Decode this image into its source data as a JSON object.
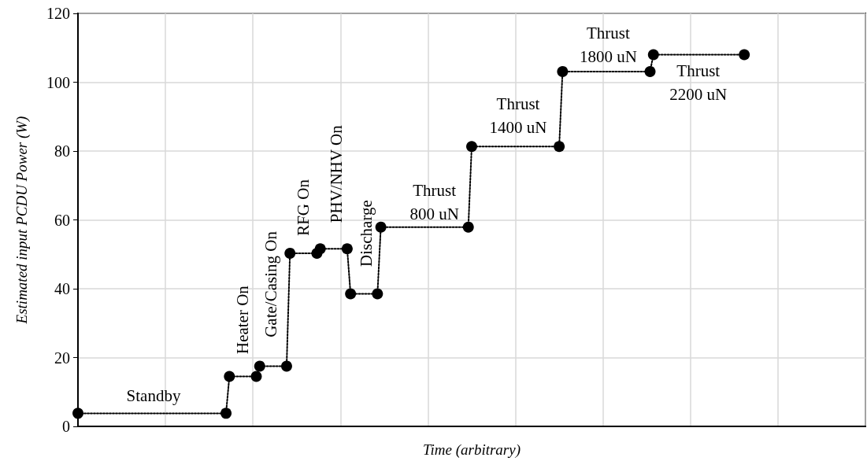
{
  "chart_data": {
    "type": "line",
    "xlabel": "Time (arbitrary)",
    "ylabel": "Estimated input PCDU Power (W)",
    "categories": [
      null,
      null,
      null,
      null,
      null,
      null,
      null,
      null,
      null,
      null,
      null,
      null,
      null,
      null,
      null,
      null,
      null,
      null,
      null,
      null,
      null,
      null,
      null,
      null,
      null,
      null,
      null,
      null,
      null,
      null,
      null,
      null,
      null,
      null,
      null,
      null,
      null,
      null,
      null,
      null,
      null,
      null,
      null,
      null,
      null,
      null,
      null,
      null,
      null,
      null,
      null,
      null,
      null,
      null,
      null,
      null,
      null,
      null,
      null,
      null,
      null,
      null,
      null,
      null,
      null,
      null,
      null,
      null,
      null,
      null,
      null,
      null,
      null,
      null,
      null,
      null,
      null,
      null,
      null,
      null,
      null,
      null,
      null,
      null,
      null,
      null,
      null,
      null,
      null,
      null,
      null,
      null,
      null,
      null,
      null,
      null,
      null,
      null,
      null,
      null,
      null,
      null,
      null,
      null,
      null,
      null,
      null,
      null,
      null,
      null,
      null,
      null,
      null,
      null,
      null,
      null,
      null,
      null,
      null,
      null,
      null,
      null,
      null,
      null,
      null,
      null,
      null,
      null,
      null,
      null,
      null,
      null,
      null,
      null,
      null,
      null,
      null,
      null,
      null,
      null,
      null,
      null,
      null,
      null,
      null,
      null,
      null,
      null,
      null,
      null,
      null,
      null,
      null,
      null,
      null,
      null,
      null,
      null,
      null,
      null,
      null,
      null,
      null,
      null,
      null,
      null,
      null,
      null,
      null,
      null,
      null,
      null,
      null,
      null,
      null,
      null,
      null,
      null,
      null,
      null,
      null,
      null,
      null,
      null,
      null,
      null,
      null,
      null,
      null,
      null,
      null,
      null,
      null,
      null,
      null,
      null,
      null,
      null,
      null,
      null,
      null,
      null,
      null,
      null,
      null,
      null,
      null,
      null,
      null,
      null,
      null,
      null,
      null,
      null,
      null,
      null,
      null,
      null,
      null,
      null,
      null,
      null,
      null,
      null,
      null,
      null,
      null,
      null,
      null,
      null,
      null,
      null,
      null,
      null,
      null
    ],
    "series": [
      {
        "color": "#000000",
        "values": [
          3.8,
          null,
          null,
          null,
          null,
          null,
          null,
          null,
          null,
          null,
          null,
          null,
          null,
          null,
          null,
          null,
          null,
          null,
          null,
          null,
          null,
          null,
          null,
          null,
          null,
          null,
          null,
          null,
          null,
          null,
          null,
          null,
          null,
          null,
          null,
          null,
          null,
          null,
          null,
          null,
          null,
          null,
          null,
          null,
          3.8,
          14.5,
          null,
          null,
          null,
          null,
          null,
          null,
          null,
          14.5,
          17.5,
          null,
          null,
          null,
          null,
          null,
          null,
          null,
          17.5,
          50.3,
          null,
          null,
          null,
          null,
          null,
          null,
          null,
          50.3,
          51.6,
          null,
          null,
          null,
          null,
          null,
          null,
          null,
          51.6,
          38.5,
          null,
          null,
          null,
          null,
          null,
          null,
          null,
          38.5,
          57.9,
          null,
          null,
          null,
          null,
          null,
          null,
          null,
          null,
          null,
          null,
          null,
          null,
          null,
          null,
          null,
          null,
          null,
          null,
          null,
          null,
          null,
          null,
          null,
          null,
          null,
          57.9,
          81.3,
          null,
          null,
          null,
          null,
          null,
          null,
          null,
          null,
          null,
          null,
          null,
          null,
          null,
          null,
          null,
          null,
          null,
          null,
          null,
          null,
          null,
          null,
          null,
          null,
          null,
          81.3,
          103.1,
          null,
          null,
          null,
          null,
          null,
          null,
          null,
          null,
          null,
          null,
          null,
          null,
          null,
          null,
          null,
          null,
          null,
          null,
          null,
          null,
          null,
          null,
          null,
          null,
          null,
          103.1,
          108,
          null,
          null,
          null,
          null,
          null,
          null,
          null,
          null,
          null,
          null,
          null,
          null,
          null,
          null,
          null,
          null,
          null,
          null,
          null,
          null,
          null,
          null,
          null,
          null,
          null,
          null,
          108,
          null,
          null,
          null,
          null,
          null,
          null,
          null,
          null,
          null,
          null,
          null,
          null,
          null,
          null,
          null,
          null,
          null,
          null,
          null,
          null,
          null,
          null,
          null,
          null,
          null,
          null,
          null,
          null,
          null,
          null,
          null,
          null,
          null,
          null,
          null,
          null
        ]
      }
    ],
    "ylim": [
      0,
      120
    ],
    "yticks": [
      0,
      20,
      40,
      60,
      80,
      100,
      120
    ],
    "tick_labels": "y",
    "grid": true,
    "marker": "circle",
    "line_style": "dotted",
    "annotations": [
      "Standby",
      "Heater On",
      "Gate/Casing On",
      "RFG On",
      "PHV/NHV On",
      "Discharge",
      "Thrust\n800 uN",
      "Thrust\n1400 uN",
      "Thrust\n1800 uN",
      "Thrust\n2200 uN"
    ]
  }
}
